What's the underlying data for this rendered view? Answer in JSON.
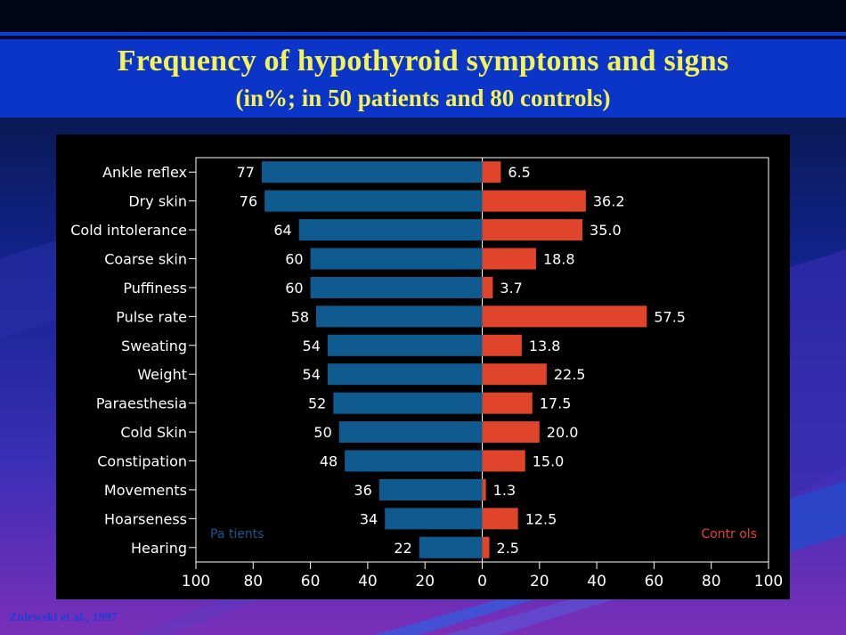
{
  "slide": {
    "title": "Frequency of hypothyroid symptoms and signs",
    "subtitle": "(in%; in 50 patients and 80 controls)",
    "citation": "Zulewski et al., 1997"
  },
  "colors": {
    "patients": "#0f5a8e",
    "controls": "#e0452c",
    "title": "#f4f255",
    "panel": "#000000"
  },
  "chart_data": {
    "type": "bar",
    "orientation": "horizontal-butterfly",
    "categories": [
      "Ankle reflex",
      "Dry skin",
      "Cold intolerance",
      "Coarse skin",
      "Puffiness",
      "Pulse rate",
      "Sweating",
      "Weight",
      "Paraesthesia",
      "Cold Skin",
      "Constipation",
      "Movements",
      "Hoarseness",
      "Hearing"
    ],
    "series": [
      {
        "name": "Patients",
        "side": "left",
        "values": [
          77,
          76,
          64,
          60,
          60,
          58,
          54,
          54,
          52,
          50,
          48,
          36,
          34,
          22
        ],
        "labels": [
          "77",
          "76",
          "64",
          "60",
          "60",
          "58",
          "54",
          "54",
          "52",
          "50",
          "48",
          "36",
          "34",
          "22"
        ]
      },
      {
        "name": "Contr  ols",
        "side": "right",
        "values": [
          6.5,
          36.2,
          35.0,
          18.8,
          3.7,
          57.5,
          13.8,
          22.5,
          17.5,
          20.0,
          15.0,
          1.3,
          12.5,
          2.5
        ],
        "labels": [
          "6.5",
          "36.2",
          "35.0",
          "18.8",
          "3.7",
          "57.5",
          "13.8",
          "22.5",
          "17.5",
          "20.0",
          "15.0",
          "1.3",
          "12.5",
          "2.5"
        ]
      }
    ],
    "legend_patients": "Pa tients",
    "legend_controls": "Contr  ols",
    "x_ticks": [
      "100",
      "80",
      "60",
      "40",
      "20",
      "0",
      "20",
      "40",
      "60",
      "80",
      "100"
    ],
    "xlim": [
      -100,
      100
    ],
    "grid": false
  }
}
